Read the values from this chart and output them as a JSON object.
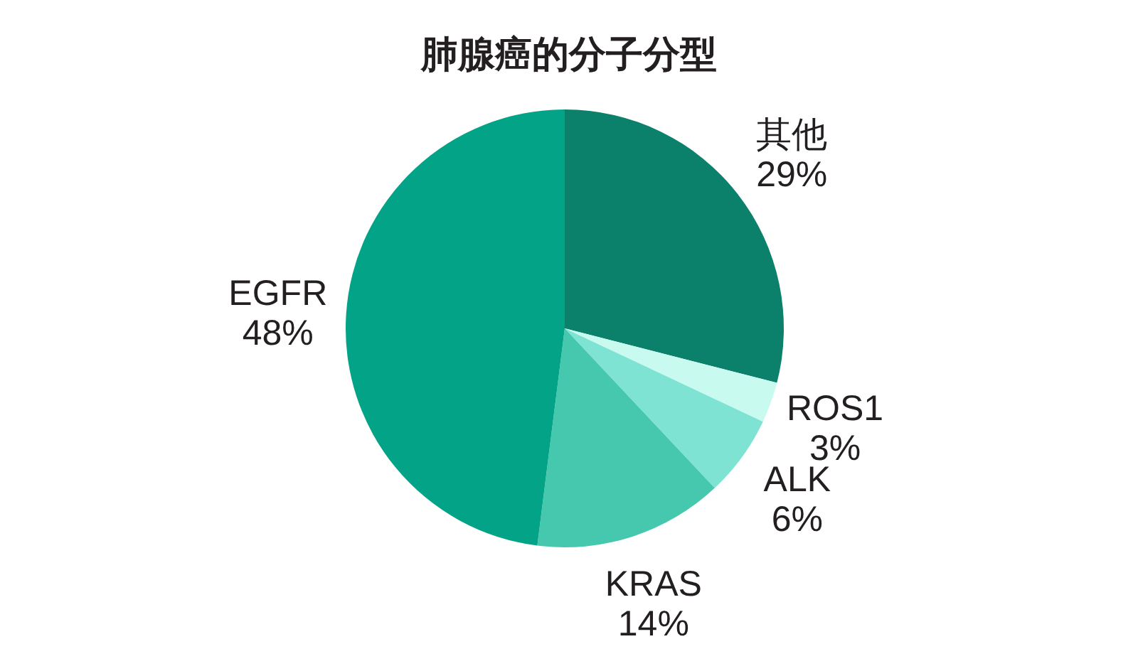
{
  "chart_data": {
    "type": "pie",
    "title": "肺腺癌的分子分型",
    "categories": [
      "其他",
      "ROS1",
      "ALK",
      "KRAS",
      "EGFR"
    ],
    "values": [
      29,
      3,
      6,
      14,
      48
    ],
    "colors": [
      "#0b806b",
      "#c9faf0",
      "#7ee3d2",
      "#46c8af",
      "#02a386"
    ],
    "value_labels": [
      "29%",
      "3%",
      "6%",
      "14%",
      "48%"
    ]
  }
}
